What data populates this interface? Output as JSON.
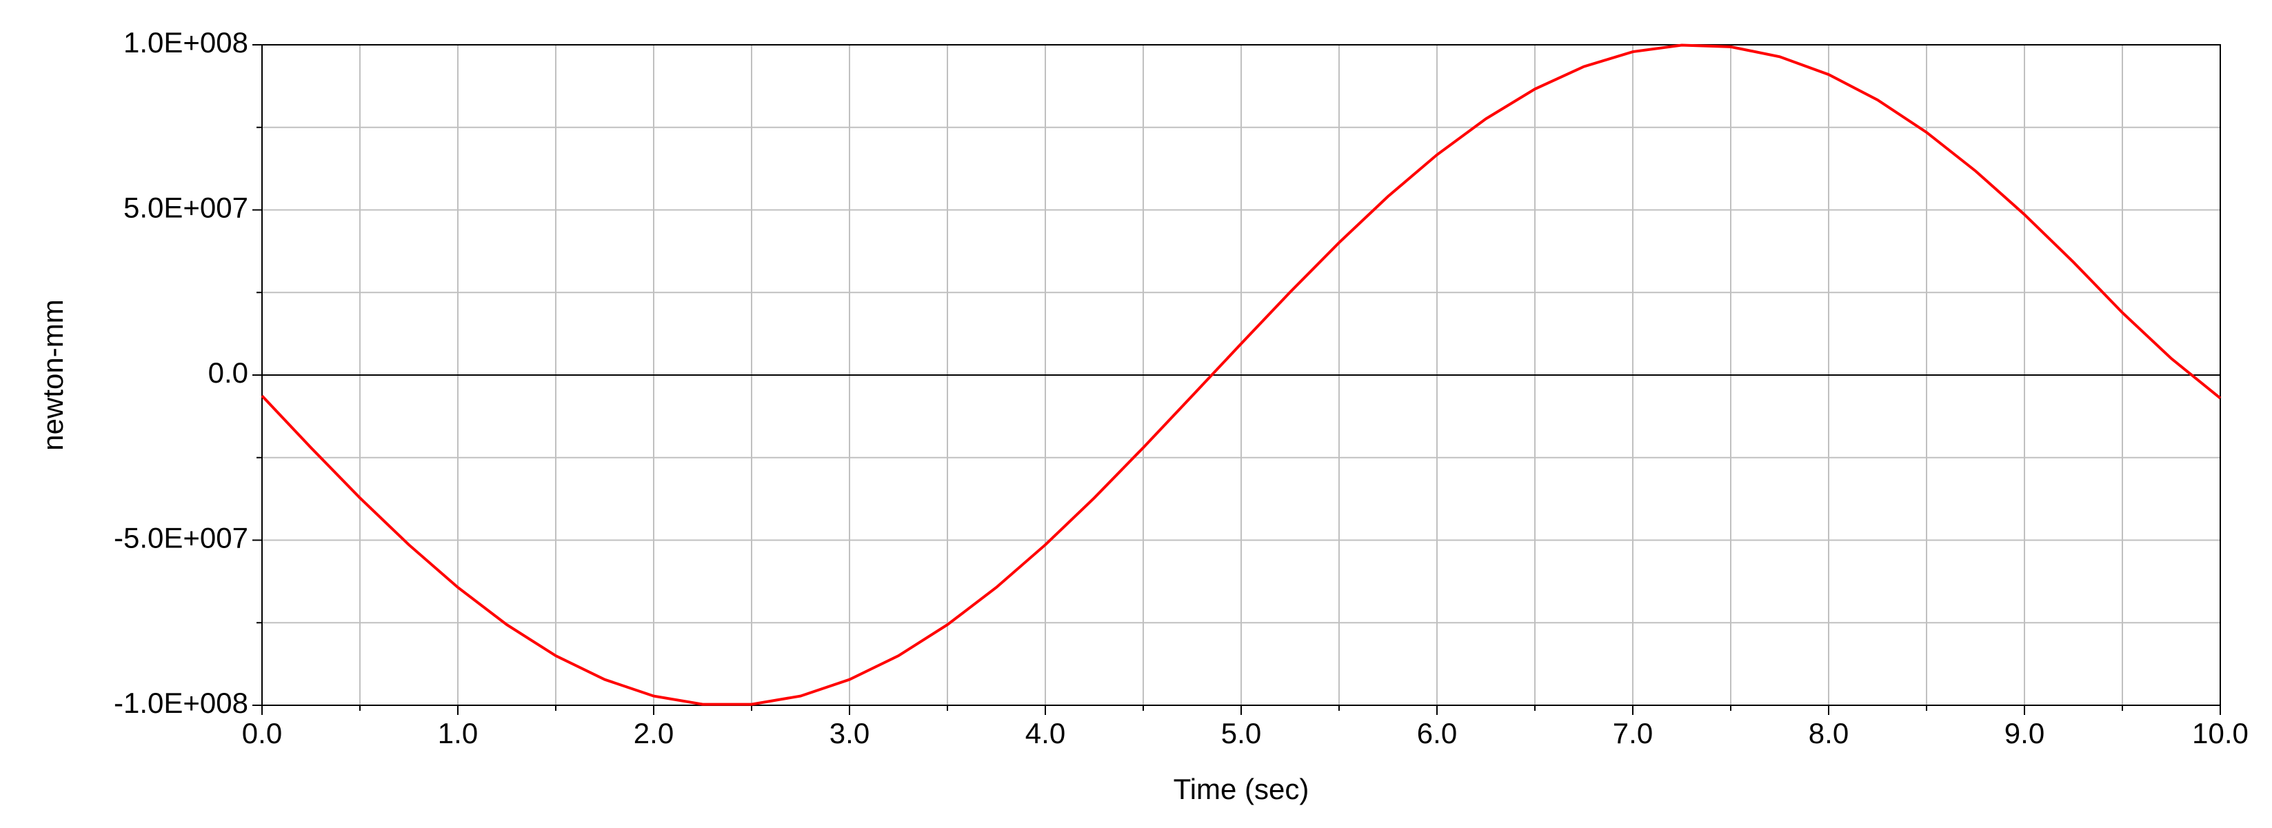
{
  "chart_data": {
    "type": "line",
    "xlabel": "Time (sec)",
    "ylabel": "newton-mm",
    "x": [
      0,
      0.25,
      0.5,
      0.75,
      1,
      1.25,
      1.5,
      1.75,
      2,
      2.25,
      2.5,
      2.75,
      3,
      3.25,
      3.5,
      3.75,
      4,
      4.25,
      4.5,
      4.75,
      5,
      5.25,
      5.5,
      5.75,
      6,
      6.25,
      6.5,
      6.75,
      7,
      7.25,
      7.5,
      7.75,
      8,
      8.25,
      8.5,
      8.75,
      9,
      9.25,
      9.5,
      9.75,
      10
    ],
    "series": [
      {
        "color": "#ff0000",
        "values": [
          -6300000,
          -22000000,
          -37200000,
          -51400000,
          -64300000,
          -75600000,
          -85000000,
          -92200000,
          -97200000,
          -99700000,
          -99700000,
          -97200000,
          -92200000,
          -85000000,
          -75600000,
          -64300000,
          -51400000,
          -37200000,
          -22000000,
          -6300000,
          9500000,
          25100000,
          40100000,
          54100000,
          66700000,
          77600000,
          86600000,
          93400000,
          97900000,
          99900000,
          99400000,
          96400000,
          91000000,
          83300000,
          73500000,
          61800000,
          48600000,
          34200000,
          18900000,
          5000000,
          -7000000
        ]
      }
    ],
    "xlim": [
      0,
      10
    ],
    "ylim": [
      -100000000,
      100000000
    ],
    "xticks": [
      {
        "value": 0,
        "label": "0.0"
      },
      {
        "value": 1,
        "label": "1.0"
      },
      {
        "value": 2,
        "label": "2.0"
      },
      {
        "value": 3,
        "label": "3.0"
      },
      {
        "value": 4,
        "label": "4.0"
      },
      {
        "value": 5,
        "label": "5.0"
      },
      {
        "value": 6,
        "label": "6.0"
      },
      {
        "value": 7,
        "label": "7.0"
      },
      {
        "value": 8,
        "label": "8.0"
      },
      {
        "value": 9,
        "label": "9.0"
      },
      {
        "value": 10,
        "label": "10.0"
      }
    ],
    "xminor_ticks": [
      0.5,
      1.5,
      2.5,
      3.5,
      4.5,
      5.5,
      6.5,
      7.5,
      8.5,
      9.5
    ],
    "yticks": [
      {
        "value": -100000000,
        "label": "-1.0E+008"
      },
      {
        "value": -50000000,
        "label": "-5.0E+007"
      },
      {
        "value": 0,
        "label": "0.0"
      },
      {
        "value": 50000000,
        "label": "5.0E+007"
      },
      {
        "value": 100000000,
        "label": "1.0E+008"
      }
    ],
    "yminor_ticks": [
      -75000000,
      -25000000,
      25000000,
      75000000
    ],
    "grid": true
  }
}
